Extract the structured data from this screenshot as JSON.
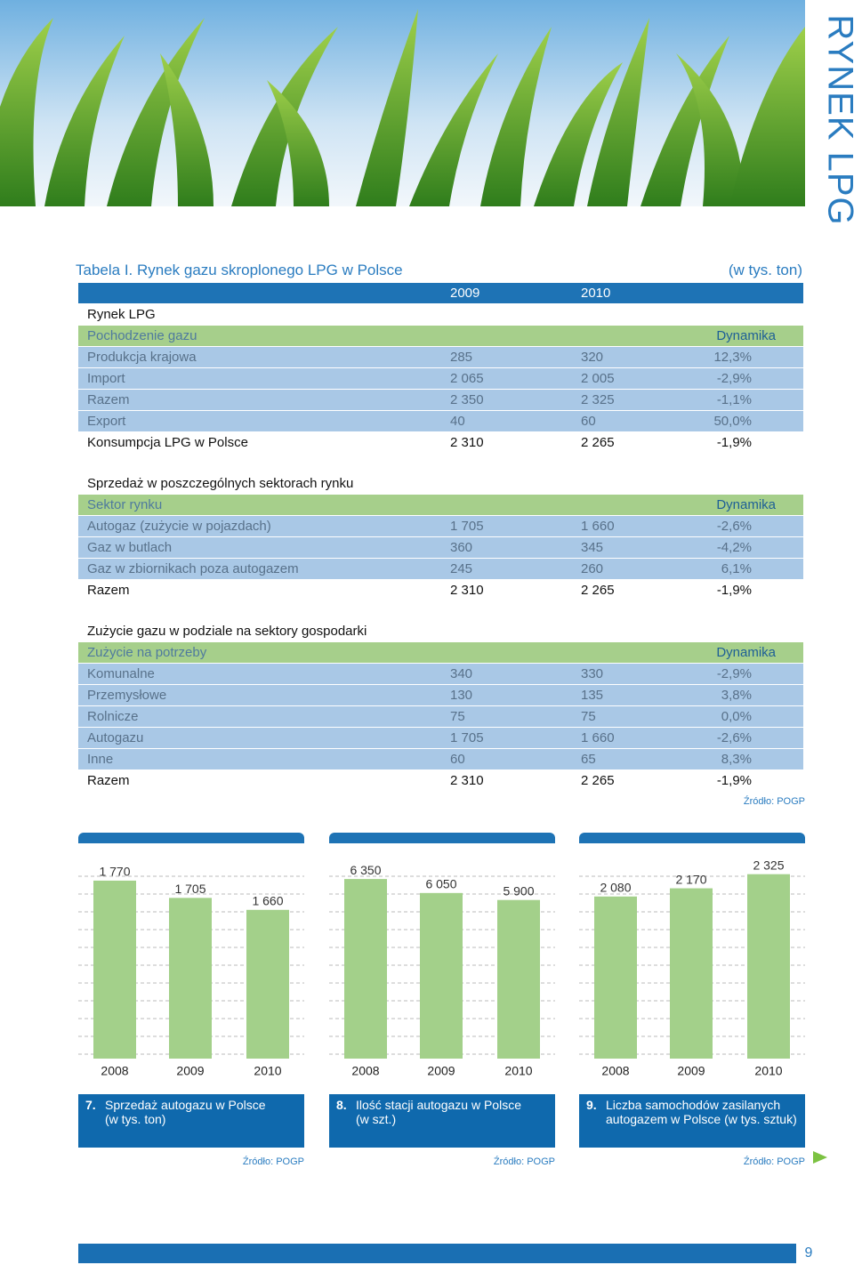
{
  "side_title": "RYNEK LPG",
  "table": {
    "title": "Tabela I. Rynek gazu skroplonego LPG w Polsce",
    "unit": "(w tys. ton)",
    "years": [
      "2009",
      "2010"
    ],
    "sections": [
      {
        "heading": "Rynek LPG",
        "subheader": "Pochodzenie gazu",
        "dyn": "Dynamika",
        "rows": [
          [
            "Produkcja krajowa",
            "285",
            "320",
            "12,3%"
          ],
          [
            "Import",
            "2 065",
            "2 005",
            "-2,9%"
          ],
          [
            "Razem",
            "2 350",
            "2 325",
            "-1,1%"
          ],
          [
            "Export",
            "40",
            "60",
            "50,0%"
          ]
        ],
        "total": [
          "Konsumpcja LPG w Polsce",
          "2 310",
          "2 265",
          "-1,9%"
        ]
      },
      {
        "heading": "Sprzedaż w poszczególnych sektorach rynku",
        "subheader": "Sektor rynku",
        "dyn": "Dynamika",
        "rows": [
          [
            "Autogaz (zużycie w pojazdach)",
            "1 705",
            "1 660",
            "-2,6%"
          ],
          [
            "Gaz w butlach",
            "360",
            "345",
            "-4,2%"
          ],
          [
            "Gaz w zbiornikach poza autogazem",
            "245",
            "260",
            "6,1%"
          ]
        ],
        "total": [
          "Razem",
          "2 310",
          "2 265",
          "-1,9%"
        ]
      },
      {
        "heading": "Zużycie gazu w podziale na sektory gospodarki",
        "subheader": "Zużycie na potrzeby",
        "dyn": "Dynamika",
        "rows": [
          [
            "Komunalne",
            "340",
            "330",
            "-2,9%"
          ],
          [
            "Przemysłowe",
            "130",
            "135",
            "3,8%"
          ],
          [
            "Rolnicze",
            "75",
            "75",
            "0,0%"
          ],
          [
            "Autogazu",
            "1 705",
            "1 660",
            "-2,6%"
          ],
          [
            "Inne",
            "60",
            "65",
            "8,3%"
          ]
        ],
        "total": [
          "Razem",
          "2 310",
          "2 265",
          "-1,9%"
        ]
      }
    ],
    "source": "Źródło: POGP"
  },
  "chart_data": [
    {
      "type": "bar",
      "number": "7.",
      "title_lines": [
        "Sprzedaż autogazu w Polsce",
        "(w tys. ton)"
      ],
      "categories": [
        "2008",
        "2009",
        "2010"
      ],
      "values": [
        1770,
        1705,
        1660
      ],
      "value_labels": [
        "1 770",
        "1 705",
        "1 660"
      ],
      "color": "#a3d08a",
      "ylim": [
        1100,
        1820
      ],
      "source": "Źródło: POGP"
    },
    {
      "type": "bar",
      "number": "8.",
      "title_lines": [
        "Ilość stacji autogazu w Polsce",
        "(w szt.)"
      ],
      "categories": [
        "2008",
        "2009",
        "2010"
      ],
      "values": [
        6350,
        6050,
        5900
      ],
      "value_labels": [
        "6 350",
        "6 050",
        "5 900"
      ],
      "color": "#a3d08a",
      "ylim": [
        2500,
        6600
      ],
      "source": "Źródło: POGP"
    },
    {
      "type": "bar",
      "number": "9.",
      "title_lines": [
        "Liczba samochodów zasilanych",
        "autogazem w Polsce (w tys. sztuk)"
      ],
      "categories": [
        "2008",
        "2009",
        "2010"
      ],
      "values": [
        2080,
        2170,
        2325
      ],
      "value_labels": [
        "2 080",
        "2 170",
        "2 325"
      ],
      "color": "#a3d08a",
      "ylim": [
        300,
        2400
      ],
      "source": "Źródło: POGP"
    }
  ],
  "page_number": "9"
}
